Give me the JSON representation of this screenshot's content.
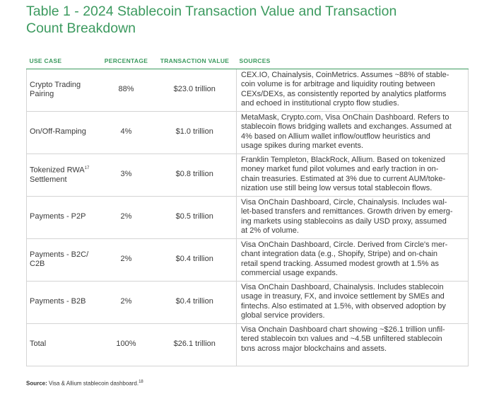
{
  "header": {
    "title_lines": [
      "Table 1 - 2024 Stablecoin Transaction Value and Transaction",
      "Count Breakdown"
    ]
  },
  "table": {
    "columns": [
      "USE CASE",
      "PERCENTAGE",
      "TRANSACTION VALUE",
      "SOURCES"
    ],
    "rows": [
      {
        "use_case": [
          "Crypto Trading",
          "Pairing"
        ],
        "percentage": "88%",
        "value": "$23.0 trillion",
        "sources": [
          "CEX.IO, Chainalysis, CoinMetrics. Assumes ~88% of stable-",
          "coin volume is for arbitrage and liquidity routing between",
          "CEXs/DEXs, as consistently reported by analytics platforms",
          "and echoed in institutional crypto flow studies."
        ]
      },
      {
        "use_case": [
          "On/Off-Ramping"
        ],
        "percentage": "4%",
        "value": "$1.0 trillion",
        "sources": [
          "MetaMask, Crypto.com, Visa OnChain Dashboard. Refers to",
          "stablecoin flows bridging wallets and exchanges. Assumed at",
          "4% based on Allium wallet inflow/outflow heuristics and",
          "usage spikes during market events."
        ]
      },
      {
        "use_case": [
          "Tokenized RWA",
          "Settlement"
        ],
        "footnote": "17",
        "percentage": "3%",
        "value": "$0.8 trillion",
        "sources": [
          "Franklin Templeton, BlackRock, Allium. Based on tokenized",
          "money market fund pilot volumes and early traction in on-",
          "chain treasuries. Estimated at 3% due to current AUM/toke-",
          "nization use still being low versus total stablecoin flows."
        ]
      },
      {
        "use_case": [
          "Payments - P2P"
        ],
        "percentage": "2%",
        "value": "$0.5 trillion",
        "sources": [
          "Visa OnChain Dashboard, Circle, Chainalysis. Includes wal-",
          "let-based transfers and remittances. Growth driven by emerg-",
          "ing markets using stablecoins as daily USD proxy, assumed",
          "at 2% of volume."
        ]
      },
      {
        "use_case": [
          "Payments - B2C/",
          "C2B"
        ],
        "percentage": "2%",
        "value": "$0.4 trillion",
        "sources": [
          "Visa OnChain Dashboard, Circle. Derived from Circle's mer-",
          "chant integration data (e.g., Shopify, Stripe) and on-chain",
          "retail spend tracking. Assumed modest growth at 1.5% as",
          "commercial usage expands."
        ]
      },
      {
        "use_case": [
          "Payments - B2B"
        ],
        "percentage": "2%",
        "value": "$0.4 trillion",
        "sources": [
          "Visa OnChain Dashboard, Chainalysis. Includes stablecoin",
          "usage in treasury, FX, and invoice settlement by SMEs and",
          "fintechs. Also estimated at 1.5%, with observed adoption by",
          "global service providers."
        ]
      },
      {
        "use_case": [
          "Total"
        ],
        "percentage": "100%",
        "value": "$26.1 trillion",
        "sources": [
          "Visa Onchain Dashboard chart showing ~$26.1 trillion unfil-",
          "tered stablecoin txn values and ~4.5B unfiltered stablecoin",
          "txns across major blockchains and assets."
        ]
      }
    ]
  },
  "footer": {
    "label": "Source:",
    "text": "Visa & Allium stablecoin dashboard.",
    "footnote": "18"
  }
}
